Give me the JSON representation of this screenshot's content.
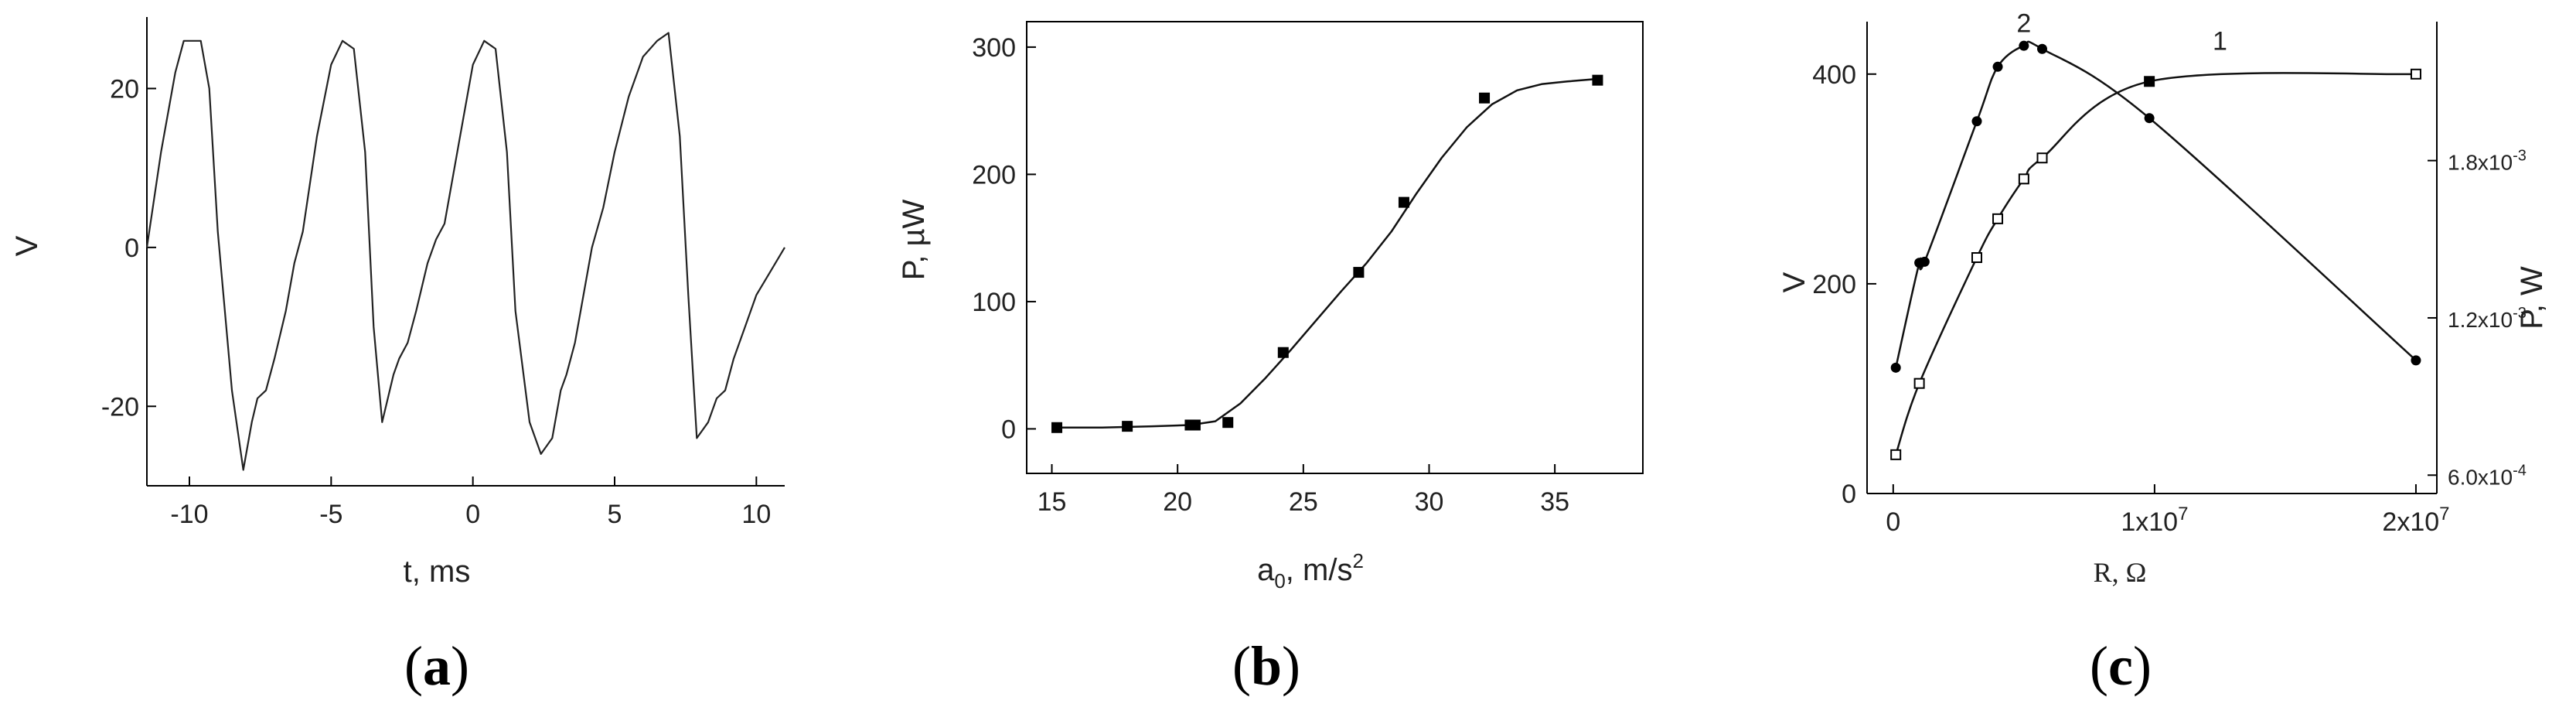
{
  "chart_data": [
    {
      "panel": "(a)",
      "panel_letter": "a",
      "type": "line",
      "xlabel": "t, ms",
      "ylabel": "V",
      "xlim": [
        -11.5,
        11
      ],
      "ylim": [
        -30,
        29
      ],
      "xticks": [
        -10,
        -5,
        0,
        5,
        10
      ],
      "yticks": [
        -20,
        0,
        20
      ],
      "xtick_labels": [
        "-10",
        "-5",
        "0",
        "5",
        "10"
      ],
      "ytick_labels": [
        "-20",
        "0",
        "20"
      ],
      "series": [
        {
          "x": [
            -11.5,
            -11.0,
            -10.5,
            -10.2,
            -9.6,
            -9.3,
            -9.0,
            -8.5,
            -8.1,
            -7.8,
            -7.6,
            -7.3,
            -7.0,
            -6.6,
            -6.3,
            -6.0,
            -5.5,
            -5.0,
            -4.6,
            -4.2,
            -3.8,
            -3.5,
            -3.2,
            -2.8,
            -2.6,
            -2.3,
            -2.0,
            -1.6,
            -1.3,
            -1.0,
            -0.5,
            0.0,
            0.4,
            0.8,
            1.2,
            1.5,
            2.0,
            2.4,
            2.8,
            3.1,
            3.3,
            3.6,
            3.9,
            4.2,
            4.6,
            5.0,
            5.5,
            6.0,
            6.5,
            6.9,
            7.3,
            7.6,
            7.9,
            8.3,
            8.6,
            8.9,
            9.2,
            9.6,
            10.0,
            10.5,
            11.0
          ],
          "y": [
            0,
            12,
            22,
            26,
            26,
            20,
            2,
            -18,
            -28,
            -22,
            -19,
            -18,
            -14,
            -8,
            -2,
            2,
            14,
            23,
            26,
            25,
            12,
            -10,
            -22,
            -16,
            -14,
            -12,
            -8,
            -2,
            1,
            3,
            13,
            23,
            26,
            25,
            12,
            -8,
            -22,
            -26,
            -24,
            -18,
            -16,
            -12,
            -6,
            0,
            5,
            12,
            19,
            24,
            26,
            27,
            14,
            -6,
            -24,
            -22,
            -19,
            -18,
            -14,
            -10,
            -6,
            -3,
            0
          ]
        }
      ]
    },
    {
      "panel": "(b)",
      "panel_letter": "b",
      "type": "scatter",
      "xlabel": "a",
      "xlabel_sub": "0",
      "xlabel_rest": ", m/s",
      "xlabel_sup": "2",
      "ylabel": "P, µW",
      "xlim": [
        14,
        38.5
      ],
      "ylim": [
        -35,
        320
      ],
      "xticks": [
        15,
        20,
        25,
        30,
        35
      ],
      "yticks": [
        0,
        100,
        200,
        300
      ],
      "xtick_labels": [
        "15",
        "20",
        "25",
        "30",
        "35"
      ],
      "ytick_labels": [
        "0",
        "100",
        "200",
        "300"
      ],
      "series": [
        {
          "x": [
            15.2,
            18.0,
            20.5,
            20.7,
            22.0,
            24.2,
            27.2,
            29.0,
            32.2,
            36.7
          ],
          "y": [
            1,
            2,
            3,
            3,
            5,
            60,
            123,
            178,
            260,
            274
          ]
        }
      ],
      "fit": {
        "x": [
          15,
          17,
          19,
          20.5,
          21.5,
          22.5,
          23.5,
          24.5,
          25.5,
          26.5,
          27.5,
          28.5,
          29.5,
          30.5,
          31.5,
          32.5,
          33.5,
          34.5,
          35.5,
          36.7
        ],
        "y": [
          1,
          1,
          2,
          3,
          6,
          20,
          40,
          62,
          85,
          108,
          130,
          155,
          185,
          213,
          237,
          255,
          266,
          271,
          273,
          275
        ]
      }
    },
    {
      "panel": "(c)",
      "panel_letter": "c",
      "type": "scatter",
      "xlabel": "R, Ω",
      "ylabel": "V",
      "y2label": "P, W",
      "xlim": [
        -0.1,
        2.08
      ],
      "ylim": [
        0,
        450
      ],
      "y2lim": [
        0.00053,
        0.00233
      ],
      "xticks": [
        0,
        1,
        2
      ],
      "xtick_labels": [
        "0",
        "1x10",
        "2x10"
      ],
      "xtick_exp": [
        "",
        "7",
        "7"
      ],
      "yticks": [
        0,
        200,
        400
      ],
      "ytick_labels": [
        "0",
        "200",
        "400"
      ],
      "y2ticks": [
        0.0006,
        0.0012,
        0.0018
      ],
      "y2tick_labels": [
        "6.0x10",
        "1.2x10",
        "1.8x10"
      ],
      "y2tick_exp": [
        "-4",
        "-3",
        "-3"
      ],
      "curve_labels": [
        "1",
        "2"
      ],
      "series": [
        {
          "label": "1",
          "marker": "open-square",
          "x": [
            0.01,
            0.1,
            0.32,
            0.4,
            0.5,
            0.57,
            0.98,
            2.0
          ],
          "y": [
            37,
            105,
            225,
            262,
            300,
            320,
            393,
            400
          ]
        },
        {
          "label": "2",
          "marker": "filled-circle",
          "x": [
            0.01,
            0.1,
            0.12,
            0.32,
            0.4,
            0.5,
            0.57,
            0.98,
            2.0
          ],
          "y": [
            120,
            220,
            221,
            355,
            407,
            427,
            424,
            358,
            127
          ]
        }
      ]
    }
  ]
}
